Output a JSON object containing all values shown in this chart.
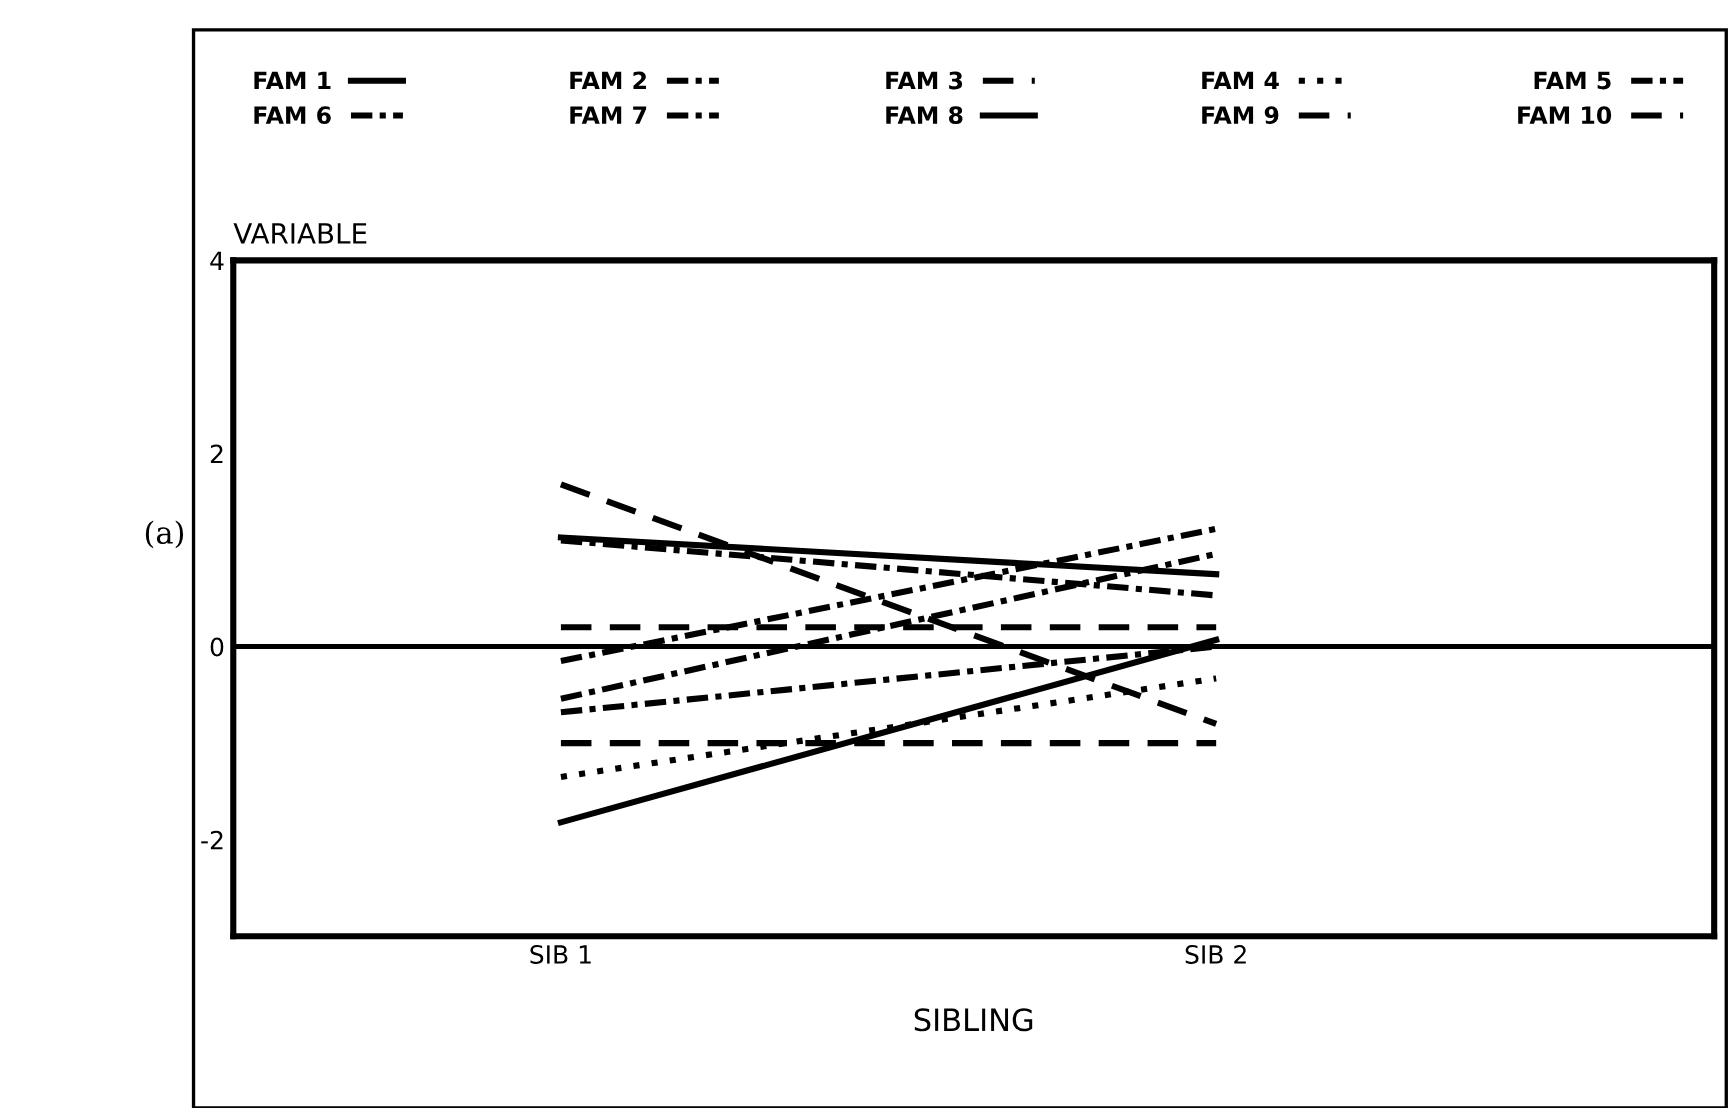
{
  "chart_data": {
    "type": "line",
    "ylabel": "VARIABLE",
    "xlabel": "SIBLING",
    "categories": [
      "SIB 1",
      "SIB 2"
    ],
    "ylim": [
      -3,
      4
    ],
    "yticks": [
      -2,
      0,
      2,
      4
    ],
    "grid": false,
    "legend": "top",
    "marker": "none",
    "annotations": [
      "(a)"
    ],
    "ref_lines": [
      {
        "axis": "y",
        "value": 0,
        "color": "#000000",
        "line_style": "solid"
      }
    ],
    "series": [
      {
        "name": "FAM 1",
        "color": "#000000",
        "line_style": "solid",
        "values": [
          1.13,
          0.75
        ]
      },
      {
        "name": "FAM 2",
        "color": "#000000",
        "line_style": "dashdot",
        "values": [
          1.1,
          0.53
        ]
      },
      {
        "name": "FAM 3",
        "color": "#000000",
        "line_style": "dashed",
        "values": [
          0.2,
          0.2
        ]
      },
      {
        "name": "FAM 4",
        "color": "#000000",
        "line_style": "dotted",
        "values": [
          -1.35,
          -0.33
        ]
      },
      {
        "name": "FAM 5",
        "color": "#000000",
        "line_style": "dashdot",
        "values": [
          -0.15,
          1.22
        ]
      },
      {
        "name": "FAM 6",
        "color": "#000000",
        "line_style": "dashdot",
        "values": [
          -0.68,
          0.0
        ]
      },
      {
        "name": "FAM 7",
        "color": "#000000",
        "line_style": "dashdot",
        "values": [
          -0.54,
          0.96
        ]
      },
      {
        "name": "FAM 8",
        "color": "#000000",
        "line_style": "solid",
        "values": [
          -1.82,
          0.07
        ]
      },
      {
        "name": "FAM 9",
        "color": "#000000",
        "line_style": "dashed",
        "values": [
          -1.0,
          -1.0
        ]
      },
      {
        "name": "FAM 10",
        "color": "#000000",
        "line_style": "dashed",
        "values": [
          1.68,
          -0.8
        ]
      }
    ]
  }
}
